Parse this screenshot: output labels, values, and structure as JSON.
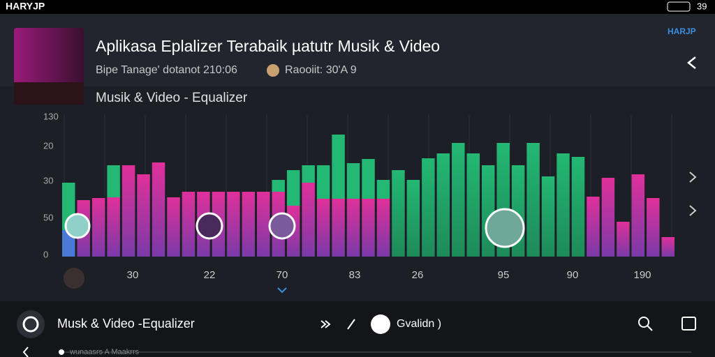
{
  "status_bar": {
    "carrier": "HARYJP",
    "time": "39"
  },
  "header": {
    "brand": "HARJP",
    "title": "Aplikasa Eplalizer Terabaik µatutr Musik & Video",
    "meta": "Bipe Tanage' dotanot 210:06",
    "rating": "Raooiit: 30'A 9",
    "subtitle": "Musik & Video - Equalizer"
  },
  "equalizer": {
    "y_labels": [
      "130",
      "20",
      "30",
      "50",
      "0"
    ],
    "x_labels": [
      "30",
      "22",
      "70",
      "83",
      "26",
      "95",
      "90",
      "190"
    ]
  },
  "player": {
    "track": "Musk & Video -Equalizer",
    "button": "Gvalidn )",
    "progress_text": "wunaasrs A Maakrrs"
  }
}
